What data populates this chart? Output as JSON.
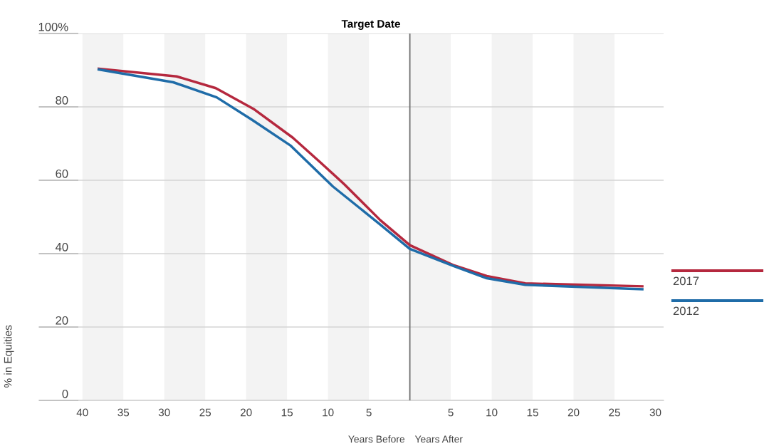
{
  "chart_data": {
    "type": "line",
    "title": "Target Date",
    "ylabel": "% in Equities",
    "annotations": [
      "Years Before",
      "Years After"
    ],
    "xlim": [
      -40.5,
      31
    ],
    "ylim": [
      0,
      100
    ],
    "xticks": [
      {
        "value": -40,
        "label": "40"
      },
      {
        "value": -35,
        "label": "35"
      },
      {
        "value": -30,
        "label": "30"
      },
      {
        "value": -25,
        "label": "25"
      },
      {
        "value": -20,
        "label": "20"
      },
      {
        "value": -15,
        "label": "15"
      },
      {
        "value": -10,
        "label": "10"
      },
      {
        "value": -5,
        "label": "5"
      },
      {
        "value": 0,
        "label": null
      },
      5,
      10,
      15,
      20,
      25,
      30
    ],
    "yticks": [
      0,
      20,
      40,
      60,
      80,
      {
        "value": 100,
        "label": "100%"
      }
    ],
    "grid": "y",
    "legend": "right",
    "ref_lines": [
      {
        "axis": "x",
        "value": 0,
        "color": "#6e6e6e"
      }
    ],
    "bands": [
      {
        "axis": "x",
        "from": -40,
        "to": -35,
        "color": "#f3f3f3"
      },
      {
        "axis": "x",
        "from": -30,
        "to": -25,
        "color": "#f3f3f3"
      },
      {
        "axis": "x",
        "from": -20,
        "to": -15,
        "color": "#f3f3f3"
      },
      {
        "axis": "x",
        "from": -10,
        "to": -5,
        "color": "#f3f3f3"
      },
      {
        "axis": "x",
        "from": 0,
        "to": 5,
        "color": "#f3f3f3"
      },
      {
        "axis": "x",
        "from": 10,
        "to": 15,
        "color": "#f3f3f3"
      },
      {
        "axis": "x",
        "from": 20,
        "to": 25,
        "color": "#f3f3f3"
      }
    ],
    "series": [
      {
        "name": "2017",
        "color": "#b5283e",
        "x": [
          -38,
          -28.5,
          -23.7,
          -19,
          -14.3,
          -10.9,
          -8,
          -3.6,
          0,
          5.4,
          9.4,
          14.1,
          28.4
        ],
        "values": [
          90.4,
          88.3,
          85.1,
          79.3,
          71.6,
          64.8,
          58.9,
          49.1,
          42.3,
          36.8,
          33.9,
          31.9,
          31.1
        ]
      },
      {
        "name": "2012",
        "color": "#1f6ca8",
        "x": [
          -38,
          -28.9,
          -23.6,
          -19.3,
          -14.6,
          -9.4,
          -3.6,
          0,
          5.4,
          9.4,
          14.1,
          28.4
        ],
        "values": [
          90.2,
          86.7,
          82.6,
          76.5,
          69.5,
          58.3,
          47.9,
          41.3,
          36.6,
          33.3,
          31.5,
          30.3
        ]
      }
    ]
  }
}
